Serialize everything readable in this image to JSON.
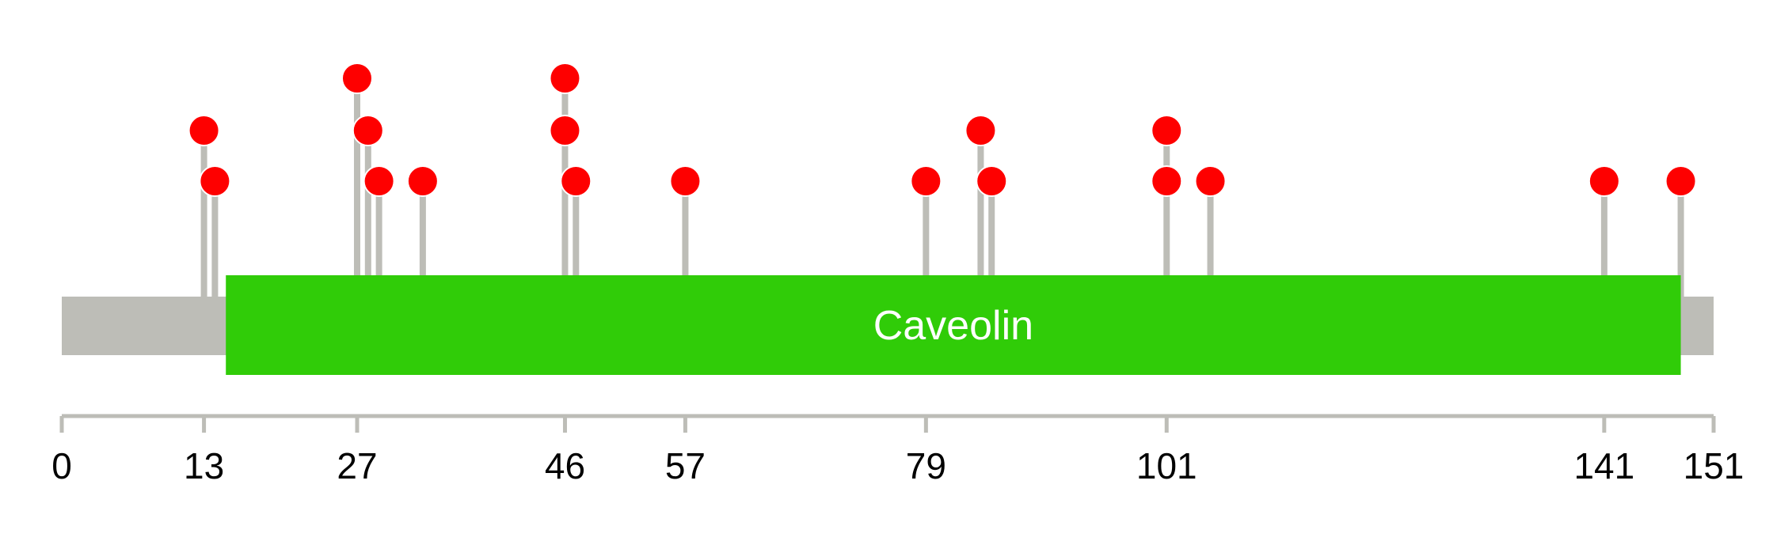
{
  "colors": {
    "backbone": "#bdbdb7",
    "domain": "#30cc08",
    "domain_text": "#ffffff",
    "stem": "#bdbdb7",
    "lollipop": "#fe0000",
    "lollipop_stroke": "#ffffff",
    "axis": "#bdbdb7",
    "tick_text": "#000000"
  },
  "chart_data": {
    "type": "lollipop",
    "protein_length": 151,
    "domains": [
      {
        "name": "Caveolin",
        "start": 15,
        "end": 148
      }
    ],
    "mutations": [
      {
        "position": 13,
        "level": 2
      },
      {
        "position": 14,
        "level": 1
      },
      {
        "position": 27,
        "level": 3
      },
      {
        "position": 28,
        "level": 2
      },
      {
        "position": 29,
        "level": 1
      },
      {
        "position": 33,
        "level": 1
      },
      {
        "position": 46,
        "level": 3
      },
      {
        "position": 46,
        "level": 2
      },
      {
        "position": 47,
        "level": 1
      },
      {
        "position": 57,
        "level": 1
      },
      {
        "position": 79,
        "level": 1
      },
      {
        "position": 84,
        "level": 2
      },
      {
        "position": 85,
        "level": 1
      },
      {
        "position": 101,
        "level": 2
      },
      {
        "position": 101,
        "level": 1
      },
      {
        "position": 105,
        "level": 1
      },
      {
        "position": 141,
        "level": 1
      },
      {
        "position": 148,
        "level": 1
      }
    ],
    "x_ticks": [
      0,
      13,
      27,
      46,
      57,
      79,
      101,
      141,
      151
    ],
    "xlim": [
      0,
      151
    ]
  }
}
